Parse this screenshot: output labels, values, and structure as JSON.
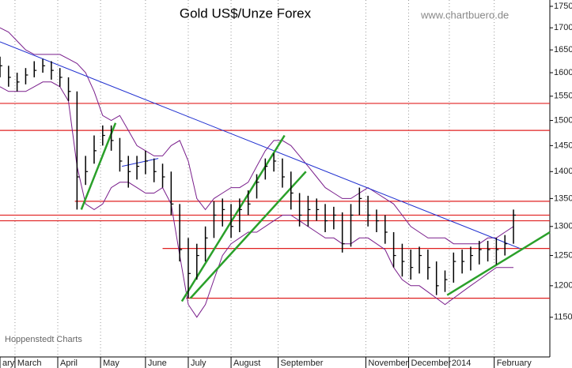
{
  "chart_data": {
    "type": "ohlc",
    "title": "Gold US$/Unze Forex",
    "annotations": [
      "www.chartbuero.de",
      "Hoppenstedt Charts"
    ],
    "x": [
      0,
      4,
      8,
      12,
      16,
      20,
      24,
      28,
      32,
      36,
      40,
      44,
      48,
      52,
      56,
      60,
      64,
      68,
      72,
      76,
      80,
      84,
      88,
      92,
      96,
      100,
      104,
      108,
      112,
      116,
      120,
      124,
      128,
      132,
      136,
      140,
      144,
      148,
      152,
      156,
      160,
      164,
      168,
      172,
      176,
      180,
      184,
      188,
      192,
      196,
      200,
      204,
      208,
      212,
      216,
      220,
      224,
      228,
      232,
      236,
      240
    ],
    "high": [
      1635,
      1615,
      1600,
      1610,
      1625,
      1630,
      1625,
      1610,
      1590,
      1560,
      1430,
      1470,
      1490,
      1490,
      1465,
      1430,
      1430,
      1440,
      1425,
      1415,
      1400,
      1340,
      1280,
      1270,
      1300,
      1345,
      1350,
      1340,
      1350,
      1365,
      1395,
      1425,
      1435,
      1425,
      1400,
      1360,
      1355,
      1350,
      1340,
      1335,
      1325,
      1340,
      1370,
      1355,
      1330,
      1320,
      1290,
      1270,
      1260,
      1265,
      1260,
      1240,
      1225,
      1255,
      1260,
      1265,
      1275,
      1275,
      1280,
      1285,
      1330
    ],
    "low": [
      1590,
      1570,
      1560,
      1575,
      1590,
      1600,
      1585,
      1570,
      1540,
      1330,
      1375,
      1415,
      1450,
      1440,
      1400,
      1370,
      1385,
      1395,
      1380,
      1370,
      1320,
      1240,
      1180,
      1210,
      1240,
      1280,
      1300,
      1280,
      1290,
      1320,
      1350,
      1385,
      1400,
      1370,
      1330,
      1300,
      1300,
      1310,
      1290,
      1295,
      1255,
      1265,
      1320,
      1300,
      1290,
      1270,
      1230,
      1215,
      1210,
      1220,
      1210,
      1185,
      1190,
      1205,
      1220,
      1225,
      1235,
      1240,
      1235,
      1250,
      1270
    ],
    "close": [
      1615,
      1590,
      1580,
      1595,
      1605,
      1615,
      1605,
      1590,
      1560,
      1390,
      1400,
      1440,
      1470,
      1460,
      1420,
      1400,
      1410,
      1420,
      1400,
      1390,
      1340,
      1260,
      1220,
      1250,
      1280,
      1320,
      1330,
      1300,
      1330,
      1340,
      1380,
      1410,
      1420,
      1390,
      1360,
      1320,
      1330,
      1330,
      1310,
      1320,
      1270,
      1320,
      1350,
      1320,
      1310,
      1290,
      1250,
      1240,
      1230,
      1250,
      1230,
      1200,
      1210,
      1240,
      1240,
      1250,
      1260,
      1260,
      1260,
      1270,
      1320
    ],
    "color": "#000000",
    "bands": {
      "color": "#7a1f8c",
      "upper": [
        1700,
        1690,
        1670,
        1650,
        1640,
        1640,
        1640,
        1640,
        1630,
        1620,
        1600,
        1560,
        1510,
        1500,
        1510,
        1480,
        1450,
        1440,
        1430,
        1430,
        1450,
        1460,
        1420,
        1350,
        1330,
        1350,
        1360,
        1370,
        1370,
        1380,
        1410,
        1440,
        1460,
        1460,
        1450,
        1430,
        1410,
        1390,
        1370,
        1360,
        1350,
        1350,
        1360,
        1370,
        1360,
        1350,
        1340,
        1320,
        1300,
        1290,
        1280,
        1280,
        1280,
        1270,
        1270,
        1270,
        1270,
        1280,
        1280,
        1290,
        1300
      ],
      "lower": [
        1570,
        1560,
        1560,
        1560,
        1570,
        1580,
        1580,
        1570,
        1540,
        1410,
        1340,
        1330,
        1340,
        1370,
        1380,
        1380,
        1370,
        1360,
        1360,
        1370,
        1340,
        1250,
        1170,
        1150,
        1170,
        1210,
        1250,
        1270,
        1280,
        1290,
        1290,
        1300,
        1310,
        1320,
        1320,
        1310,
        1300,
        1290,
        1280,
        1280,
        1270,
        1270,
        1280,
        1280,
        1270,
        1260,
        1230,
        1210,
        1200,
        1200,
        1190,
        1180,
        1170,
        1180,
        1190,
        1200,
        1210,
        1220,
        1230,
        1230,
        1230
      ]
    },
    "reference_lines": {
      "color": "#e02020",
      "lines": [
        {
          "value": 1535,
          "from": 0
        },
        {
          "value": 1480,
          "from": 0
        },
        {
          "value": 1345,
          "from": 35
        },
        {
          "value": 1320,
          "from": 0
        },
        {
          "value": 1310,
          "from": 0
        },
        {
          "value": 1262,
          "from": 76
        },
        {
          "value": 1180,
          "from": 87
        }
      ]
    },
    "trend_lines": [
      {
        "color": "#1f2fd0",
        "x": [
          0,
          243
        ],
        "values": [
          1668,
          1262
        ]
      },
      {
        "color": "#1f2fd0",
        "x": [
          57,
          74
        ],
        "values": [
          1410,
          1425
        ]
      },
      {
        "color": "#2aa02a",
        "x": [
          38,
          54
        ],
        "values": [
          1330,
          1495
        ]
      },
      {
        "color": "#2aa02a",
        "x": [
          85,
          133
        ],
        "values": [
          1175,
          1470
        ]
      },
      {
        "color": "#2aa02a",
        "x": [
          89,
          143
        ],
        "values": [
          1180,
          1400
        ]
      },
      {
        "color": "#2aa02a",
        "x": [
          209,
          257
        ],
        "values": [
          1185,
          1290
        ]
      }
    ],
    "xlim": [
      0,
      257
    ],
    "xticks": [
      {
        "value": 0,
        "label": "ary"
      },
      {
        "value": 7,
        "label": "March"
      },
      {
        "value": 27,
        "label": "April"
      },
      {
        "value": 47,
        "label": "May"
      },
      {
        "value": 68,
        "label": "June"
      },
      {
        "value": 88,
        "label": "July"
      },
      {
        "value": 108,
        "label": "August"
      },
      {
        "value": 130,
        "label": "September"
      },
      {
        "value": 171,
        "label": "November"
      },
      {
        "value": 191,
        "label": "December"
      },
      {
        "value": 210,
        "label": "2014"
      },
      {
        "value": 231,
        "label": "February"
      }
    ],
    "ylim": [
      1090,
      1765
    ],
    "yticks": [
      1150,
      1200,
      1250,
      1300,
      1350,
      1400,
      1450,
      1500,
      1550,
      1600,
      1650,
      1700,
      1750
    ],
    "log_scale": true,
    "grid": "x"
  }
}
